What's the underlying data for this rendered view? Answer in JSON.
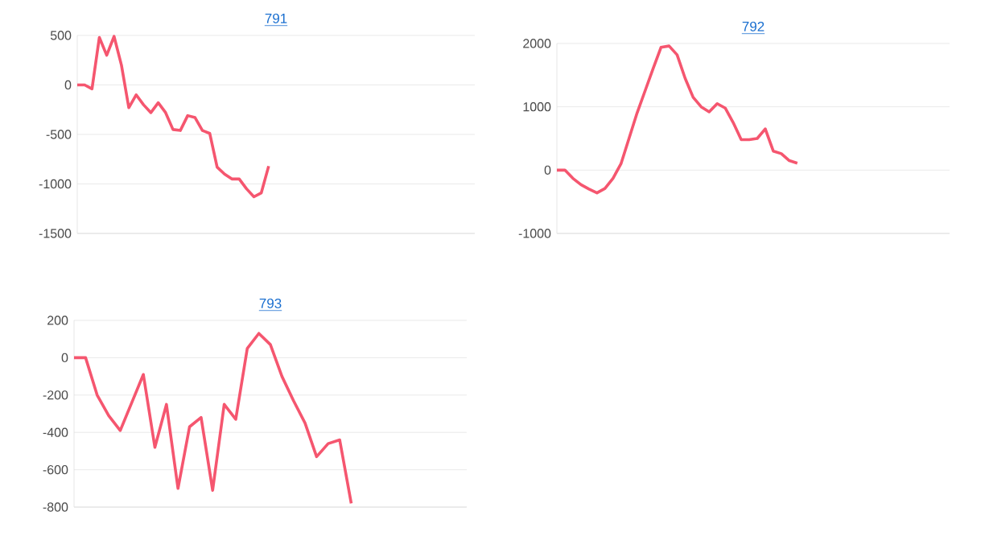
{
  "chart_data": [
    {
      "type": "line",
      "title": "791",
      "categories": [
        null,
        null,
        null,
        null,
        null,
        null,
        null,
        null,
        null,
        null,
        null,
        null,
        null,
        null,
        null,
        null,
        null,
        null,
        null,
        null,
        null,
        null,
        null,
        null,
        null,
        null,
        null,
        null,
        null,
        null,
        null,
        null,
        null,
        null,
        null,
        null,
        null,
        null,
        null,
        null,
        null,
        null,
        null,
        null,
        null,
        null,
        null,
        null,
        null,
        null,
        null,
        null,
        null,
        null,
        null
      ],
      "values": [
        0,
        0,
        -40,
        480,
        300,
        490,
        200,
        -230,
        -100,
        -200,
        -280,
        -180,
        -280,
        -450,
        -460,
        -310,
        -330,
        -460,
        -490,
        -830,
        -900,
        -950,
        -950,
        -1050,
        -1130,
        -1090,
        -820,
        null,
        null,
        null,
        null,
        null,
        null,
        null,
        null,
        null,
        null,
        null,
        null,
        null,
        null,
        null,
        null,
        null,
        null,
        null,
        null,
        null,
        null,
        null,
        null,
        null,
        null,
        null,
        null
      ],
      "color": "#f5566f",
      "ylim": [
        -1500,
        500
      ],
      "yticks": [
        -1500,
        -1000,
        -500,
        0,
        500
      ],
      "grid": "y"
    },
    {
      "type": "line",
      "title": "792",
      "categories": [
        null,
        null,
        null,
        null,
        null,
        null,
        null,
        null,
        null,
        null,
        null,
        null,
        null,
        null,
        null,
        null,
        null,
        null,
        null,
        null,
        null,
        null,
        null,
        null,
        null,
        null,
        null,
        null,
        null,
        null,
        null,
        null,
        null,
        null,
        null,
        null,
        null,
        null,
        null,
        null,
        null,
        null,
        null,
        null,
        null,
        null,
        null,
        null,
        null,
        null
      ],
      "values": [
        0,
        0,
        -130,
        -230,
        -300,
        -360,
        -290,
        -130,
        100,
        500,
        900,
        1250,
        1600,
        1940,
        1960,
        1820,
        1450,
        1150,
        1000,
        920,
        1050,
        980,
        750,
        480,
        480,
        500,
        650,
        300,
        260,
        150,
        110,
        null,
        null,
        null,
        null,
        null,
        null,
        null,
        null,
        null,
        null,
        null,
        null,
        null,
        null,
        null,
        null,
        null,
        null,
        null
      ],
      "color": "#f5566f",
      "ylim": [
        -1000,
        2000
      ],
      "yticks": [
        -1000,
        0,
        1000,
        2000
      ],
      "grid": "y"
    },
    {
      "type": "line",
      "title": "793",
      "categories": [
        null,
        null,
        null,
        null,
        null,
        null,
        null,
        null,
        null,
        null,
        null,
        null,
        null,
        null,
        null,
        null,
        null,
        null,
        null,
        null,
        null,
        null,
        null,
        null,
        null,
        null,
        null,
        null,
        null,
        null,
        null,
        null,
        null,
        null,
        null
      ],
      "values": [
        0,
        0,
        -200,
        -310,
        -390,
        -240,
        -90,
        -480,
        -250,
        -700,
        -370,
        -320,
        -710,
        -250,
        -330,
        50,
        130,
        70,
        -100,
        -230,
        -350,
        -530,
        -460,
        -440,
        -780,
        null,
        null,
        null,
        null,
        null,
        null,
        null,
        null,
        null,
        null
      ],
      "color": "#f5566f",
      "ylim": [
        -800,
        200
      ],
      "yticks": [
        -800,
        -600,
        -400,
        -200,
        0,
        200
      ],
      "grid": "y"
    }
  ]
}
